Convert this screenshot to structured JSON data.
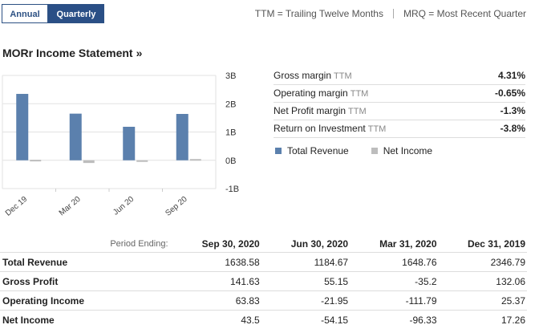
{
  "tabs": {
    "annual": "Annual",
    "quarterly": "Quarterly"
  },
  "header_legend": {
    "ttm": "TTM = Trailing Twelve Months",
    "mrq": "MRQ = Most Recent Quarter"
  },
  "title": "MORr Income Statement",
  "title_suffix": "»",
  "metrics": [
    {
      "label": "Gross margin",
      "ttm": "TTM",
      "value": "4.31%"
    },
    {
      "label": "Operating margin",
      "ttm": "TTM",
      "value": "-0.65%"
    },
    {
      "label": "Net Profit margin",
      "ttm": "TTM",
      "value": "-1.3%"
    },
    {
      "label": "Return on Investment",
      "ttm": "TTM",
      "value": "-3.8%"
    }
  ],
  "legend": {
    "revenue": "Total Revenue",
    "net_income": "Net Income"
  },
  "colors": {
    "revenue": "#5b80ad",
    "net_income": "#bdbdbd",
    "tab_active": "#2a4f86"
  },
  "chart_data": {
    "type": "bar",
    "categories": [
      "Dec 19",
      "Mar 20",
      "Jun 20",
      "Sep 20"
    ],
    "series": [
      {
        "name": "Total Revenue",
        "values": [
          2346.79,
          1648.76,
          1184.67,
          1638.58
        ]
      },
      {
        "name": "Net Income",
        "values": [
          17.26,
          -96.33,
          -54.15,
          43.5
        ]
      }
    ],
    "unit": "millions",
    "ylim": [
      -1000,
      3000
    ],
    "yticks": [
      3000,
      2000,
      1000,
      0,
      -1000
    ],
    "ytick_labels": [
      "3B",
      "2B",
      "1B",
      "0B",
      "-1B"
    ],
    "grid": true,
    "legend_position": "right"
  },
  "table": {
    "period_label": "Period Ending:",
    "columns": [
      "Sep 30, 2020",
      "Jun 30, 2020",
      "Mar 31, 2020",
      "Dec 31, 2019"
    ],
    "rows": [
      {
        "label": "Total Revenue",
        "values": [
          "1638.58",
          "1184.67",
          "1648.76",
          "2346.79"
        ]
      },
      {
        "label": "Gross Profit",
        "values": [
          "141.63",
          "55.15",
          "-35.2",
          "132.06"
        ]
      },
      {
        "label": "Operating Income",
        "values": [
          "63.83",
          "-21.95",
          "-111.79",
          "25.37"
        ]
      },
      {
        "label": "Net Income",
        "values": [
          "43.5",
          "-54.15",
          "-96.33",
          "17.26"
        ]
      }
    ]
  }
}
